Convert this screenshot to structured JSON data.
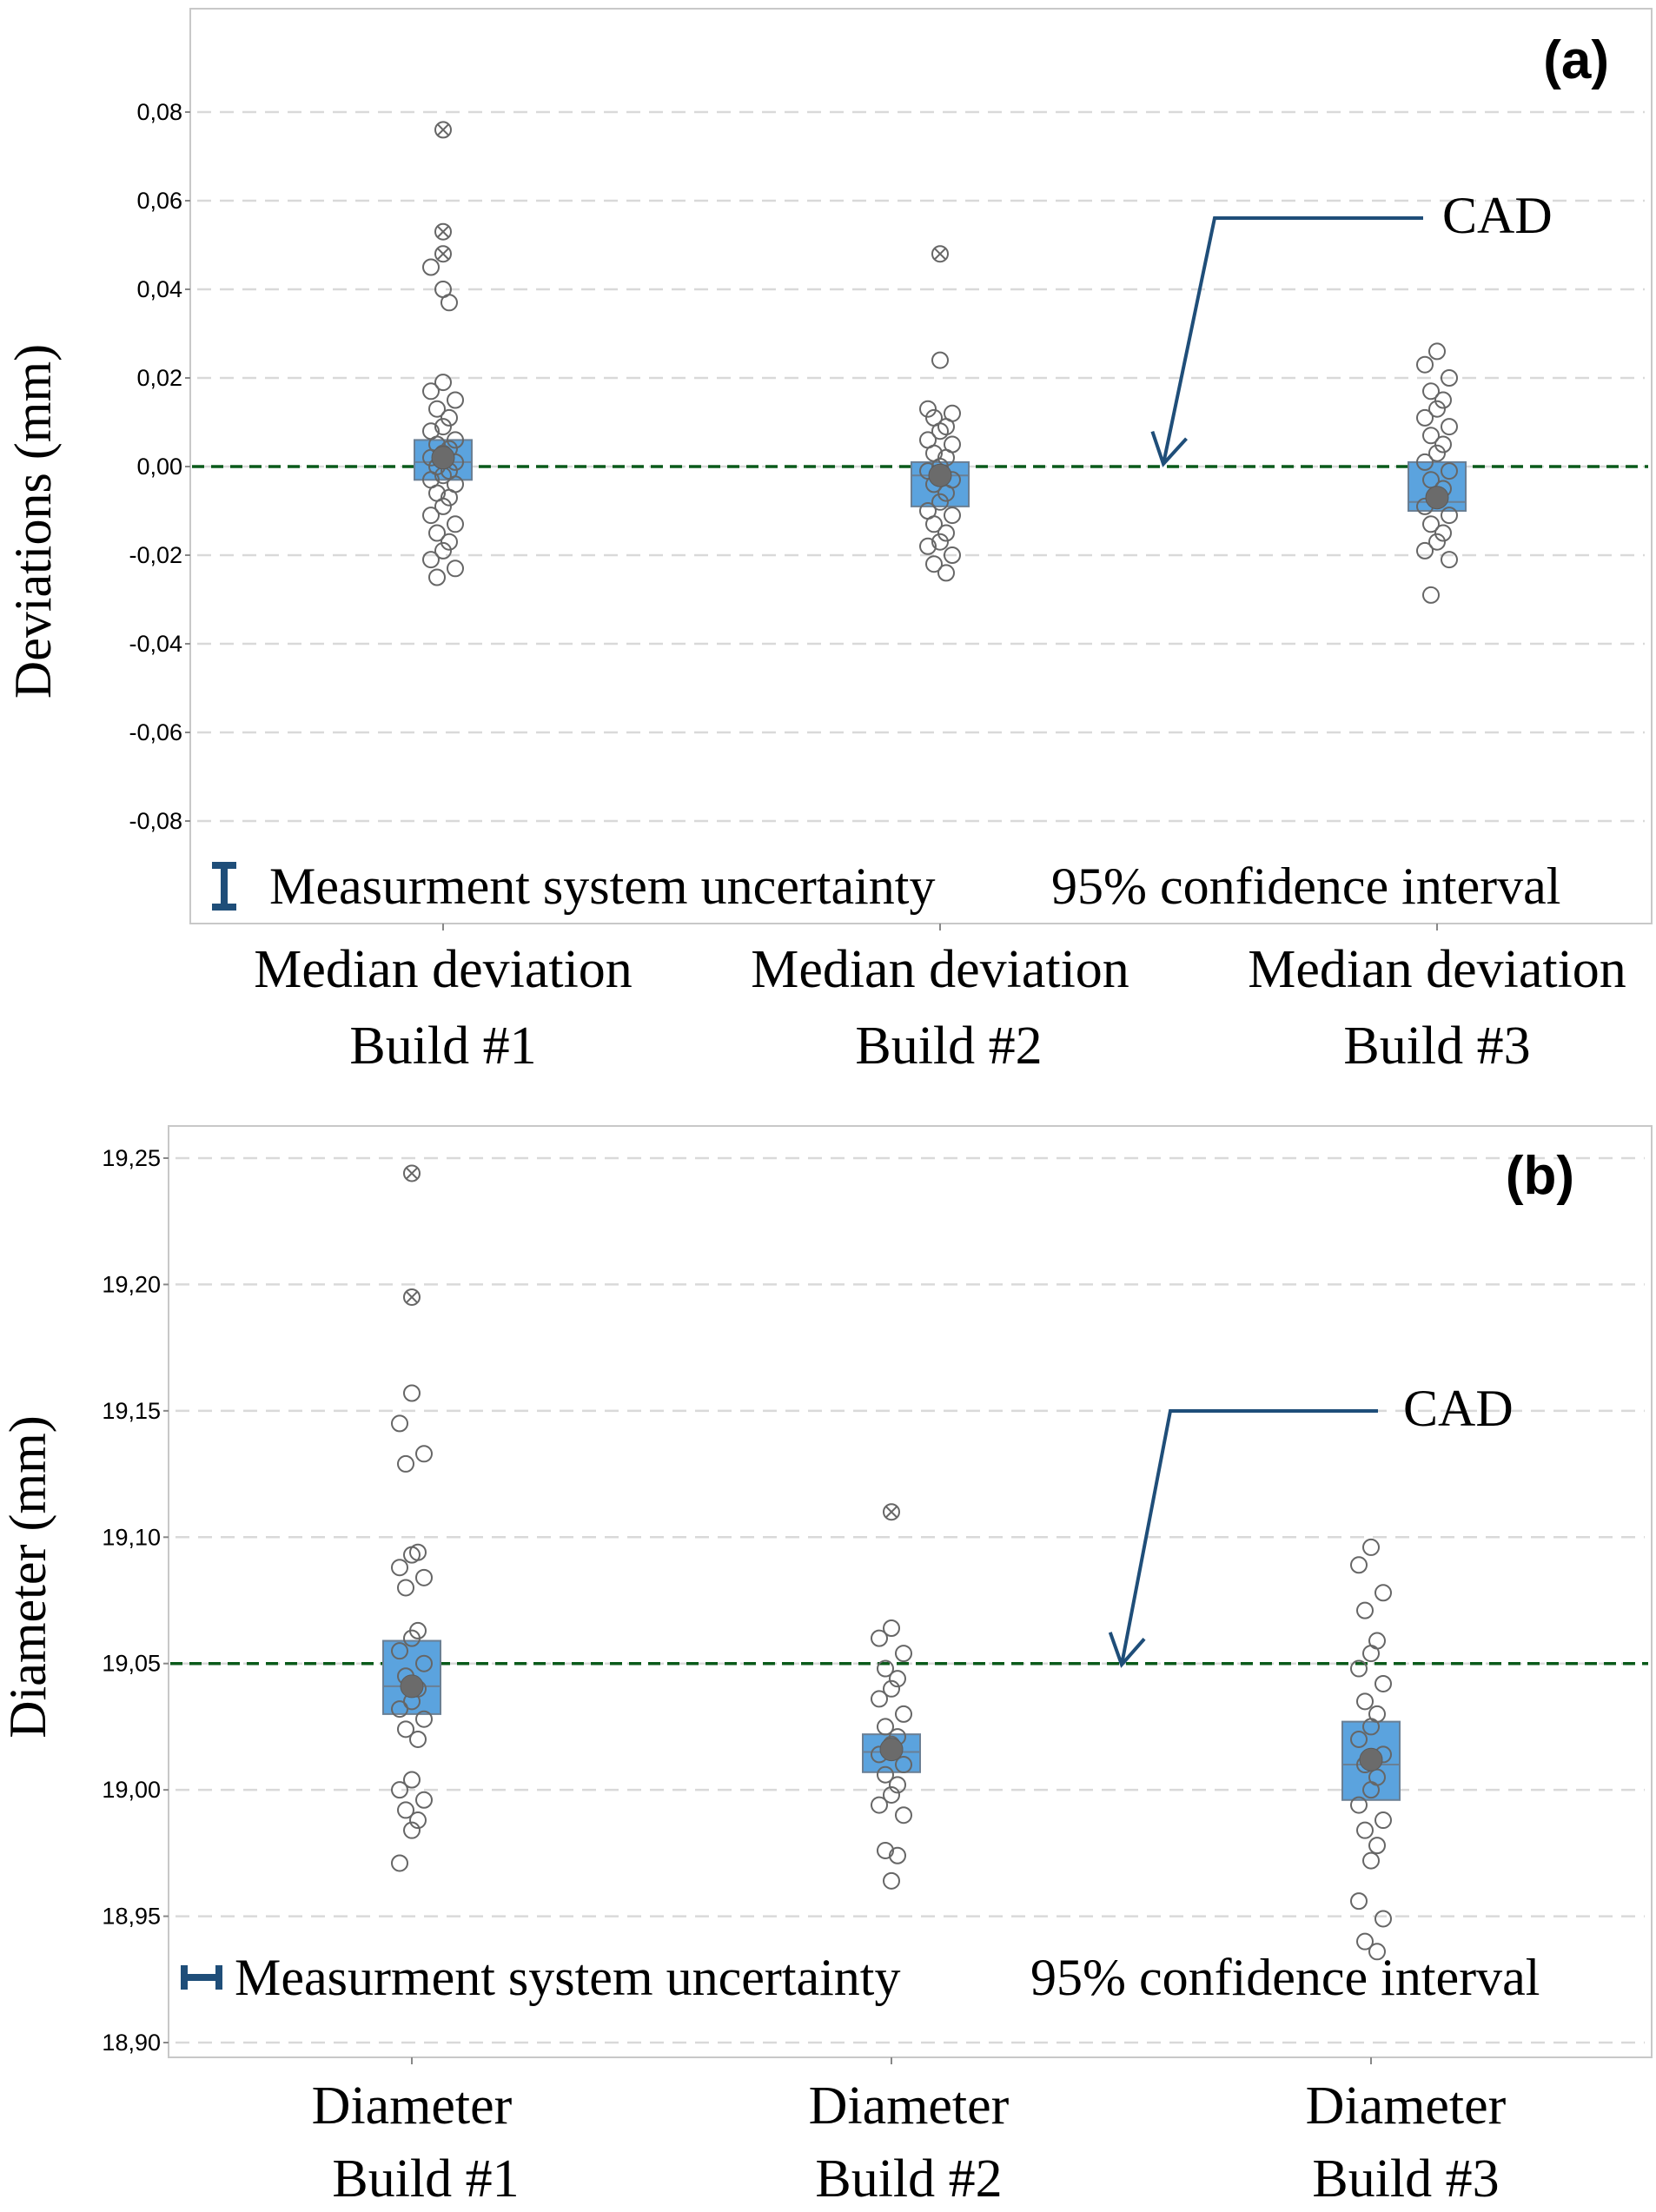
{
  "chart_data": [
    {
      "type": "boxplot",
      "panel_label": "(a)",
      "ylabel": "Deviations (mm)",
      "ylim": [
        -0.1,
        0.1
      ],
      "yticks": [
        "0,08",
        "0,06",
        "0,04",
        "0,02",
        "0,00",
        "-0,02",
        "-0,04",
        "-0,06",
        "-0,08"
      ],
      "ytick_values": [
        0.08,
        0.06,
        0.04,
        0.02,
        0.0,
        -0.02,
        -0.04,
        -0.06,
        -0.08
      ],
      "reference": {
        "label": "CAD",
        "value": 0.0
      },
      "legend": {
        "uncertainty": "Measurment system uncertainty",
        "ci": "95% confidence interval"
      },
      "categories": [
        {
          "line1": "Median deviation",
          "line2": "Build #1",
          "q1": -0.003,
          "q3": 0.006,
          "median": 0.001,
          "mean": 0.002,
          "points": [
            0.019,
            0.017,
            0.015,
            0.013,
            0.011,
            0.009,
            0.008,
            0.006,
            0.005,
            0.004,
            0.003,
            0.002,
            0.001,
            0.0,
            -0.001,
            -0.002,
            -0.003,
            -0.004,
            -0.006,
            -0.007,
            -0.009,
            -0.011,
            -0.013,
            -0.015,
            -0.017,
            -0.019,
            -0.021,
            -0.023,
            -0.025,
            0.037,
            0.04,
            0.045
          ],
          "outliers": [
            0.076,
            0.053,
            0.048
          ]
        },
        {
          "line1": "Median deviation",
          "line2": "Build #2",
          "q1": -0.009,
          "q3": 0.001,
          "median": -0.002,
          "mean": -0.002,
          "points": [
            0.024,
            0.013,
            0.012,
            0.011,
            0.009,
            0.008,
            0.006,
            0.005,
            0.003,
            0.002,
            0.0,
            -0.001,
            -0.003,
            -0.004,
            -0.006,
            -0.008,
            -0.01,
            -0.011,
            -0.013,
            -0.015,
            -0.017,
            -0.018,
            -0.02,
            -0.022,
            -0.024
          ],
          "outliers": [
            0.048
          ]
        },
        {
          "line1": "Median deviation",
          "line2": "Build #3",
          "q1": -0.01,
          "q3": 0.001,
          "median": -0.008,
          "mean": -0.007,
          "points": [
            0.026,
            0.023,
            0.02,
            0.017,
            0.015,
            0.013,
            0.011,
            0.009,
            0.007,
            0.005,
            0.003,
            0.001,
            -0.001,
            -0.003,
            -0.005,
            -0.007,
            -0.009,
            -0.011,
            -0.013,
            -0.015,
            -0.017,
            -0.019,
            -0.021,
            -0.029
          ],
          "outliers": []
        }
      ]
    },
    {
      "type": "boxplot",
      "panel_label": "(b)",
      "ylabel": "Diameter (mm)",
      "ylim": [
        18.895,
        19.27
      ],
      "yticks": [
        "19,25",
        "19,20",
        "19,15",
        "19,10",
        "19,05",
        "19,00",
        "18,95",
        "18,90"
      ],
      "ytick_values": [
        19.25,
        19.2,
        19.15,
        19.1,
        19.05,
        19.0,
        18.95,
        18.9
      ],
      "reference": {
        "label": "CAD",
        "value": 19.05
      },
      "legend": {
        "uncertainty": "Measurment system uncertainty",
        "ci": "95% confidence interval"
      },
      "categories": [
        {
          "line1": "Diameter",
          "line2": "Build #1",
          "q1": 19.03,
          "q3": 19.059,
          "median": 19.041,
          "mean": 19.041,
          "points": [
            19.157,
            19.145,
            19.133,
            19.129,
            19.094,
            19.093,
            19.088,
            19.084,
            19.08,
            19.063,
            19.06,
            19.055,
            19.05,
            19.045,
            19.04,
            19.035,
            19.032,
            19.028,
            19.024,
            19.02,
            19.004,
            19.0,
            18.996,
            18.992,
            18.988,
            18.984,
            18.971
          ],
          "outliers": [
            19.244,
            19.195
          ]
        },
        {
          "line1": "Diameter",
          "line2": "Build #2",
          "q1": 19.007,
          "q3": 19.022,
          "median": 19.015,
          "mean": 19.016,
          "points": [
            19.064,
            19.06,
            19.054,
            19.048,
            19.044,
            19.04,
            19.036,
            19.03,
            19.025,
            19.021,
            19.018,
            19.014,
            19.01,
            19.006,
            19.002,
            18.998,
            18.994,
            18.99,
            18.976,
            18.974,
            18.964
          ],
          "outliers": [
            19.11
          ]
        },
        {
          "line1": "Diameter",
          "line2": "Build #3",
          "q1": 18.996,
          "q3": 19.027,
          "median": 19.01,
          "mean": 19.012,
          "points": [
            19.096,
            19.089,
            19.078,
            19.071,
            19.059,
            19.054,
            19.048,
            19.042,
            19.035,
            19.03,
            19.025,
            19.02,
            19.014,
            19.01,
            19.005,
            19.0,
            18.994,
            18.988,
            18.984,
            18.978,
            18.972,
            18.956,
            18.949,
            18.94,
            18.936
          ],
          "outliers": []
        }
      ]
    }
  ]
}
